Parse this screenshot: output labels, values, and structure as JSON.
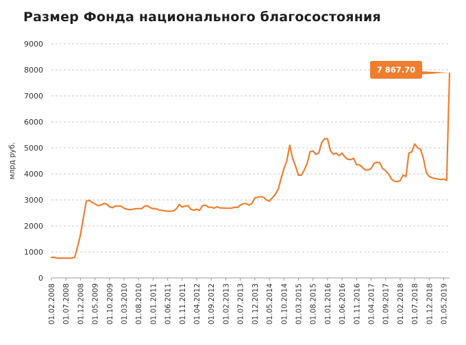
{
  "chart_data": {
    "type": "line",
    "title": "Размер Фонда национального благосостояния",
    "ylabel": "млрд руб.",
    "xlabel": "",
    "ylim": [
      0,
      9000
    ],
    "yticks": [
      "0",
      "1000",
      "2000",
      "3000",
      "4000",
      "5000",
      "6000",
      "7000",
      "8000",
      "9000"
    ],
    "grid": true,
    "x_tick_labels": [
      "01.02.2008",
      "01.07.2008",
      "01.12.2008",
      "01.05.2009",
      "01.10.2009",
      "01.03.2010",
      "01.08.2010",
      "01.01.2011",
      "01.06.2011",
      "01.11.2011",
      "01.04.2012",
      "01.09.2012",
      "01.02.2013",
      "01.07.2013",
      "01.12.2013",
      "01.05.2014",
      "01.10.2014",
      "01.03.2015",
      "01.08.2015",
      "01.01.2016",
      "01.06.2016",
      "01.11.2016",
      "01.04.2017",
      "01.09.2017",
      "01.02.2018",
      "01.07.2018",
      "01.12.2018",
      "01.05.2019"
    ],
    "series": [
      {
        "color": "#ef7d2e",
        "x": [
          "2008-02",
          "2008-03",
          "2008-04",
          "2008-05",
          "2008-06",
          "2008-07",
          "2008-08",
          "2008-09",
          "2008-10",
          "2008-11",
          "2008-12",
          "2009-01",
          "2009-02",
          "2009-03",
          "2009-04",
          "2009-05",
          "2009-06",
          "2009-07",
          "2009-08",
          "2009-09",
          "2009-10",
          "2009-11",
          "2009-12",
          "2010-01",
          "2010-02",
          "2010-03",
          "2010-04",
          "2010-05",
          "2010-06",
          "2010-07",
          "2010-08",
          "2010-09",
          "2010-10",
          "2010-11",
          "2010-12",
          "2011-01",
          "2011-02",
          "2011-03",
          "2011-04",
          "2011-05",
          "2011-06",
          "2011-07",
          "2011-08",
          "2011-09",
          "2011-10",
          "2011-11",
          "2011-12",
          "2012-01",
          "2012-02",
          "2012-03",
          "2012-04",
          "2012-05",
          "2012-06",
          "2012-07",
          "2012-08",
          "2012-09",
          "2012-10",
          "2012-11",
          "2012-12",
          "2013-01",
          "2013-02",
          "2013-03",
          "2013-04",
          "2013-05",
          "2013-06",
          "2013-07",
          "2013-08",
          "2013-09",
          "2013-10",
          "2013-11",
          "2013-12",
          "2014-01",
          "2014-02",
          "2014-03",
          "2014-04",
          "2014-05",
          "2014-06",
          "2014-07",
          "2014-08",
          "2014-09",
          "2014-10",
          "2014-11",
          "2014-12",
          "2015-01",
          "2015-02",
          "2015-03",
          "2015-04",
          "2015-05",
          "2015-06",
          "2015-07",
          "2015-08",
          "2015-09",
          "2015-10",
          "2015-11",
          "2015-12",
          "2016-01",
          "2016-02",
          "2016-03",
          "2016-04",
          "2016-05",
          "2016-06",
          "2016-07",
          "2016-08",
          "2016-09",
          "2016-10",
          "2016-11",
          "2016-12",
          "2017-01",
          "2017-02",
          "2017-03",
          "2017-04",
          "2017-05",
          "2017-06",
          "2017-07",
          "2017-08",
          "2017-09",
          "2017-10",
          "2017-11",
          "2017-12",
          "2018-01",
          "2018-02",
          "2018-03",
          "2018-04",
          "2018-05",
          "2018-06",
          "2018-07",
          "2018-08",
          "2018-09",
          "2018-10",
          "2018-11",
          "2018-12",
          "2019-01",
          "2019-02",
          "2019-03",
          "2019-04",
          "2019-05",
          "2019-06",
          "2019-07"
        ],
        "values": [
          790,
          790,
          760,
          760,
          760,
          760,
          760,
          760,
          790,
          1200,
          1650,
          2300,
          2950,
          2990,
          2900,
          2850,
          2780,
          2800,
          2860,
          2840,
          2740,
          2700,
          2760,
          2760,
          2760,
          2680,
          2640,
          2620,
          2640,
          2660,
          2660,
          2660,
          2750,
          2780,
          2700,
          2660,
          2660,
          2610,
          2600,
          2580,
          2560,
          2560,
          2580,
          2660,
          2820,
          2720,
          2760,
          2780,
          2640,
          2600,
          2640,
          2600,
          2780,
          2800,
          2720,
          2720,
          2680,
          2740,
          2690,
          2690,
          2680,
          2680,
          2680,
          2720,
          2710,
          2800,
          2850,
          2860,
          2800,
          2860,
          3080,
          3100,
          3120,
          3100,
          3000,
          2950,
          3080,
          3200,
          3400,
          3800,
          4200,
          4500,
          5100,
          4600,
          4300,
          3950,
          3950,
          4150,
          4400,
          4850,
          4880,
          4750,
          4800,
          5200,
          5350,
          5350,
          4900,
          4750,
          4800,
          4700,
          4800,
          4650,
          4560,
          4550,
          4600,
          4350,
          4350,
          4250,
          4150,
          4150,
          4200,
          4400,
          4450,
          4420,
          4200,
          4120,
          4000,
          3800,
          3720,
          3700,
          3740,
          3950,
          3900,
          4800,
          4850,
          5150,
          5000,
          4950,
          4600,
          4050,
          3900,
          3850,
          3820,
          3800,
          3780,
          3800,
          3750,
          7867.7
        ]
      }
    ],
    "annotations": [
      {
        "text": "7 867.70",
        "value": 7867.7,
        "x": "2019-07"
      }
    ]
  }
}
